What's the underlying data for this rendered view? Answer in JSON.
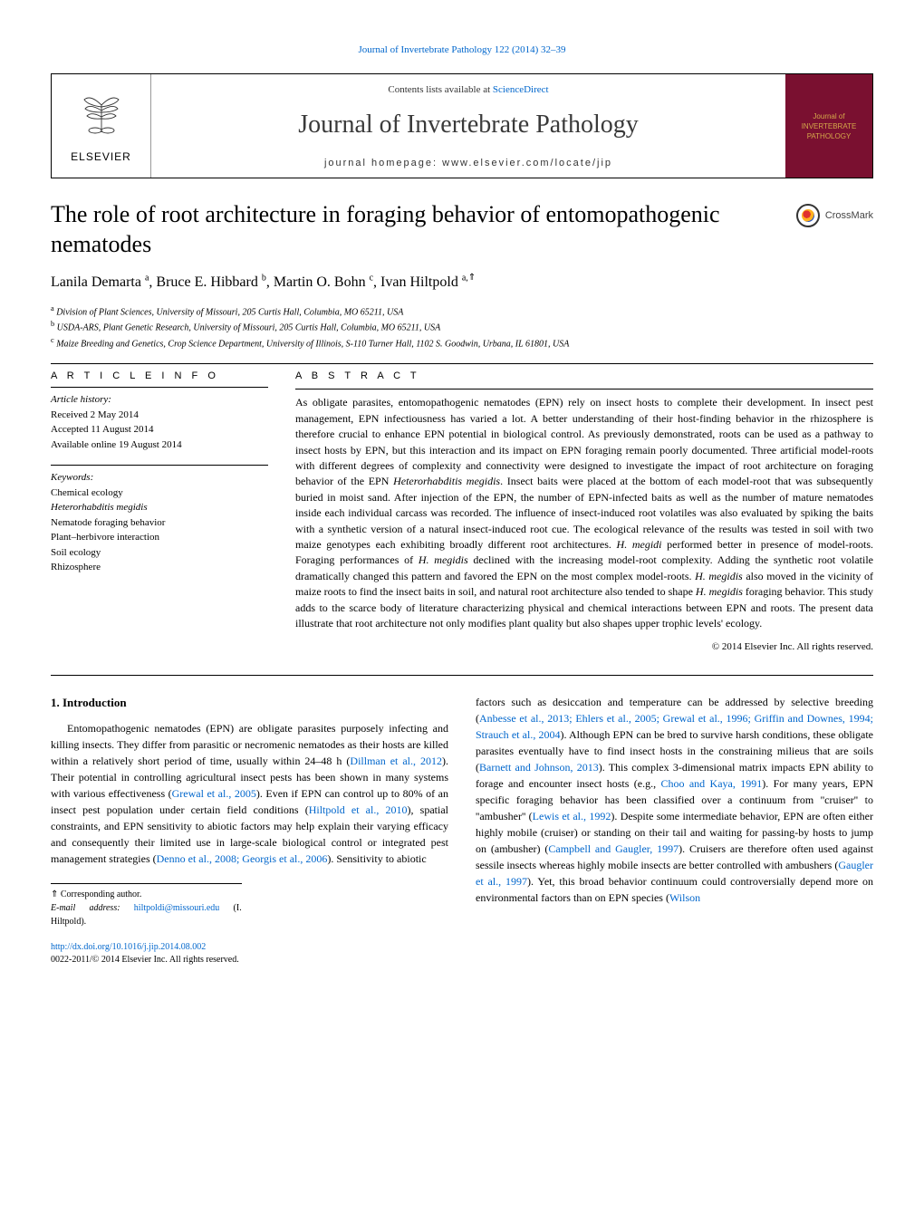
{
  "topLink": {
    "text": "Journal of Invertebrate Pathology 122 (2014) 32–39",
    "color": "#0066cc"
  },
  "header": {
    "publisher": "ELSEVIER",
    "contentsPrefix": "Contents lists available at ",
    "contentsLink": "ScienceDirect",
    "journalName": "Journal of Invertebrate Pathology",
    "homepagePrefix": "journal homepage: ",
    "homepageUrl": "www.elsevier.com/locate/jip",
    "coverText": "Journal of INVERTEBRATE PATHOLOGY"
  },
  "crossmark": {
    "label": "CrossMark"
  },
  "article": {
    "title": "The role of root architecture in foraging behavior of entomopathogenic nematodes",
    "authorsHtml": "Lanila Demarta <sup>a</sup>, Bruce E. Hibbard <sup>b</sup>, Martin O. Bohn <sup>c</sup>, Ivan Hiltpold <sup>a,</sup>",
    "correspondingMark": "⇑"
  },
  "affiliations": [
    {
      "sup": "a",
      "text": "Division of Plant Sciences, University of Missouri, 205 Curtis Hall, Columbia, MO 65211, USA"
    },
    {
      "sup": "b",
      "text": "USDA-ARS, Plant Genetic Research, University of Missouri, 205 Curtis Hall, Columbia, MO 65211, USA"
    },
    {
      "sup": "c",
      "text": "Maize Breeding and Genetics, Crop Science Department, University of Illinois, S-110 Turner Hall, 1102 S. Goodwin, Urbana, IL 61801, USA"
    }
  ],
  "articleInfo": {
    "header": "A R T I C L E   I N F O",
    "historyLabel": "Article history:",
    "history": [
      "Received 2 May 2014",
      "Accepted 11 August 2014",
      "Available online 19 August 2014"
    ],
    "keywordsLabel": "Keywords:",
    "keywords": [
      "Chemical ecology",
      "Heterorhabditis megidis",
      "Nematode foraging behavior",
      "Plant–herbivore interaction",
      "Soil ecology",
      "Rhizosphere"
    ]
  },
  "abstract": {
    "header": "A B S T R A C T",
    "text": "As obligate parasites, entomopathogenic nematodes (EPN) rely on insect hosts to complete their development. In insect pest management, EPN infectiousness has varied a lot. A better understanding of their host-finding behavior in the rhizosphere is therefore crucial to enhance EPN potential in biological control. As previously demonstrated, roots can be used as a pathway to insect hosts by EPN, but this interaction and its impact on EPN foraging remain poorly documented. Three artificial model-roots with different degrees of complexity and connectivity were designed to investigate the impact of root architecture on foraging behavior of the EPN Heterorhabditis megidis. Insect baits were placed at the bottom of each model-root that was subsequently buried in moist sand. After injection of the EPN, the number of EPN-infected baits as well as the number of mature nematodes inside each individual carcass was recorded. The influence of insect-induced root volatiles was also evaluated by spiking the baits with a synthetic version of a natural insect-induced root cue. The ecological relevance of the results was tested in soil with two maize genotypes each exhibiting broadly different root architectures. H. megidi performed better in presence of model-roots. Foraging performances of H. megidis declined with the increasing model-root complexity. Adding the synthetic root volatile dramatically changed this pattern and favored the EPN on the most complex model-roots. H. megidis also moved in the vicinity of maize roots to find the insect baits in soil, and natural root architecture also tended to shape H. megidis foraging behavior. This study adds to the scarce body of literature characterizing physical and chemical interactions between EPN and roots. The present data illustrate that root architecture not only modifies plant quality but also shapes upper trophic levels' ecology.",
    "copyright": "© 2014 Elsevier Inc. All rights reserved."
  },
  "body": {
    "introHeading": "1. Introduction",
    "leftParagraph": "Entomopathogenic nematodes (EPN) are obligate parasites purposely infecting and killing insects. They differ from parasitic or necromenic nematodes as their hosts are killed within a relatively short period of time, usually within 24–48 h (Dillman et al., 2012). Their potential in controlling agricultural insect pests has been shown in many systems with various effectiveness (Grewal et al., 2005). Even if EPN can control up to 80% of an insect pest population under certain field conditions (Hiltpold et al., 2010), spatial constraints, and EPN sensitivity to abiotic factors may help explain their varying efficacy and consequently their limited use in large-scale biological control or integrated pest management strategies (Denno et al., 2008; Georgis et al., 2006). Sensitivity to abiotic",
    "rightParagraph": "factors such as desiccation and temperature can be addressed by selective breeding (Anbesse et al., 2013; Ehlers et al., 2005; Grewal et al., 1996; Griffin and Downes, 1994; Strauch et al., 2004). Although EPN can be bred to survive harsh conditions, these obligate parasites eventually have to find insect hosts in the constraining milieus that are soils (Barnett and Johnson, 2013). This complex 3-dimensional matrix impacts EPN ability to forage and encounter insect hosts (e.g., Choo and Kaya, 1991). For many years, EPN specific foraging behavior has been classified over a continuum from ''cruiser'' to ''ambusher'' (Lewis et al., 1992). Despite some intermediate behavior, EPN are often either highly mobile (cruiser) or standing on their tail and waiting for passing-by hosts to jump on (ambusher) (Campbell and Gaugler, 1997). Cruisers are therefore often used against sessile insects whereas highly mobile insects are better controlled with ambushers (Gaugler et al., 1997). Yet, this broad behavior continuum could controversially depend more on environmental factors than on EPN species (Wilson",
    "leftRefs": [
      "Dillman et al., 2012",
      "Grewal et al., 2005",
      "Hiltpold et al., 2010",
      "Denno et al., 2008; Georgis et al., 2006"
    ],
    "rightRefs": [
      "Anbesse et al., 2013; Ehlers et al., 2005; Grewal et al., 1996; Griffin and Downes, 1994; Strauch et al., 2004",
      "Barnett and Johnson, 2013",
      "Choo and Kaya, 1991",
      "Lewis et al., 1992",
      "Campbell and Gaugler, 1997",
      "Gaugler et al., 1997",
      "Wilson"
    ]
  },
  "footnotes": {
    "corr": "⇑ Corresponding author.",
    "emailLabel": "E-mail address: ",
    "email": "hiltpoldi@missouri.edu",
    "emailSuffix": " (I. Hiltpold)."
  },
  "footer": {
    "doi": "http://dx.doi.org/10.1016/j.jip.2014.08.002",
    "issn": "0022-2011/© 2014 Elsevier Inc. All rights reserved."
  },
  "style": {
    "linkColor": "#0066cc",
    "bodyFont": "Georgia, 'Times New Roman', serif",
    "coverBg": "#7a1030",
    "coverText": "#d4a84a"
  }
}
